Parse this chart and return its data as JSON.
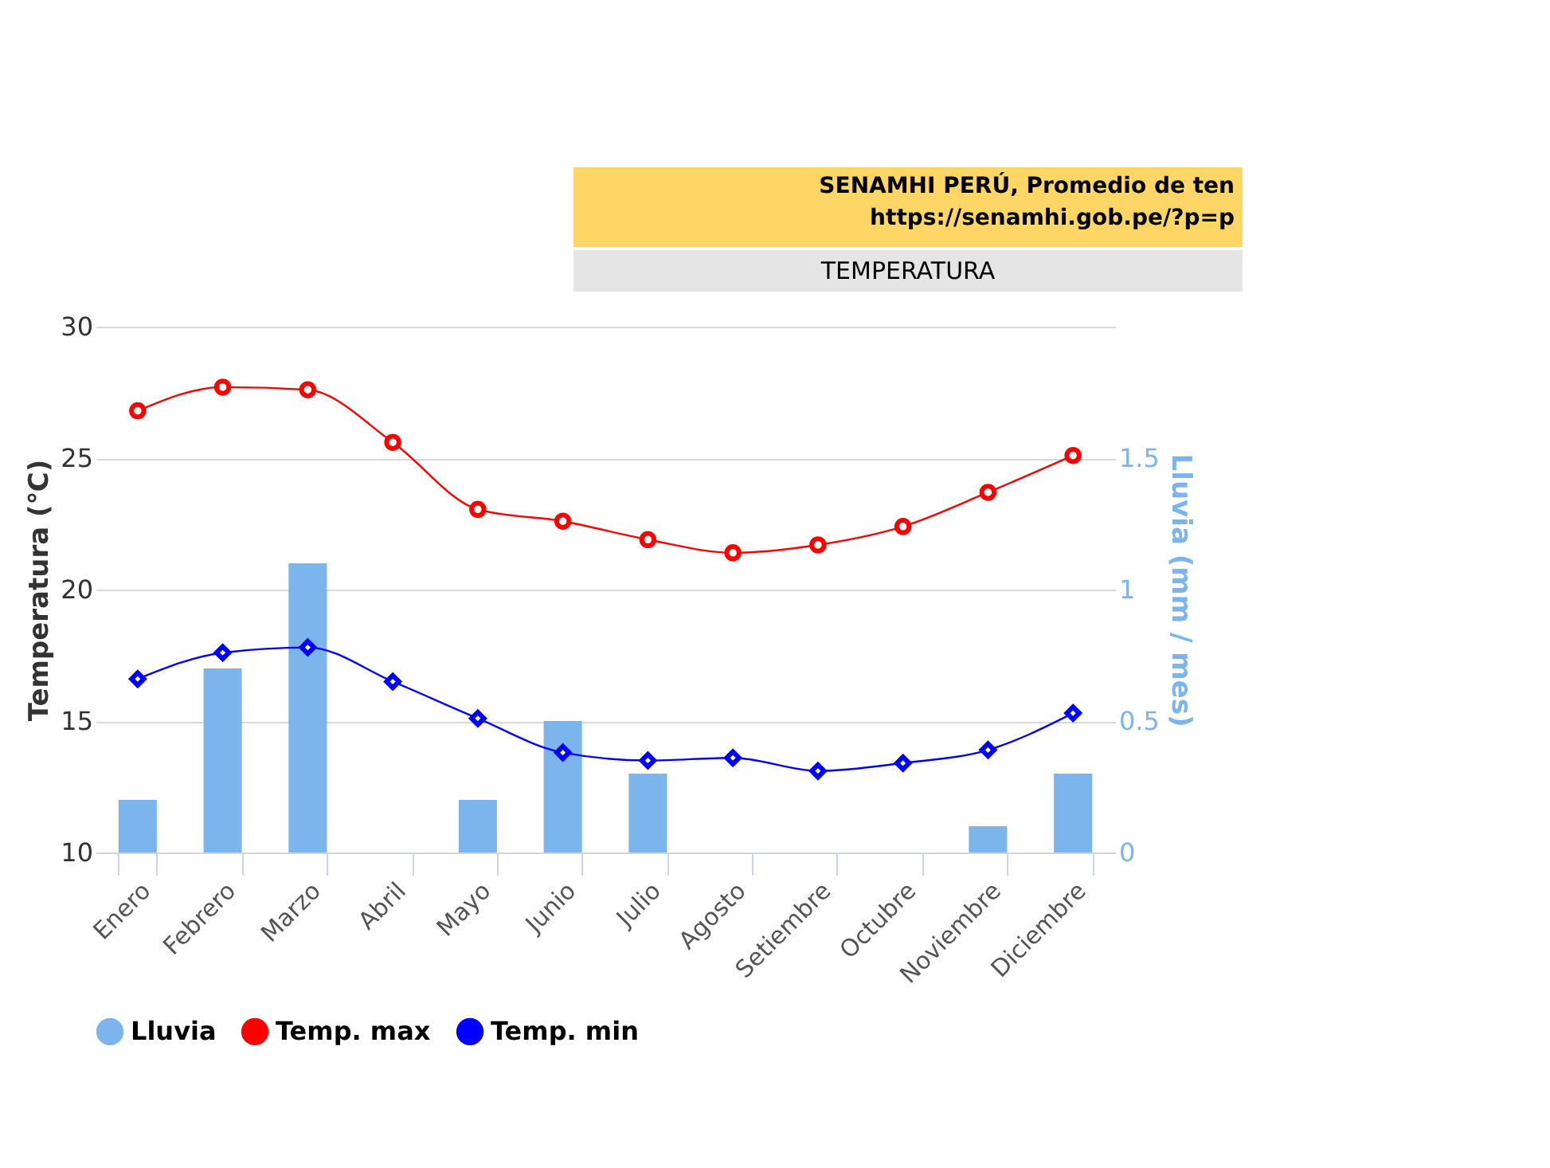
{
  "chart_data": {
    "type": "bar",
    "title": "TEMPERATURA",
    "annotations": [
      "SENAMHI PERÚ, Promedio de ten",
      "https://senamhi.gob.pe/?p=p"
    ],
    "categories": [
      "Enero",
      "Febrero",
      "Marzo",
      "Abril",
      "Mayo",
      "Junio",
      "Julio",
      "Agosto",
      "Setiembre",
      "Octubre",
      "Noviembre",
      "Diciembre"
    ],
    "series": [
      {
        "name": "Lluvia",
        "axis": "y2",
        "color": "#7cb5ec",
        "values": [
          0.2,
          0.7,
          1.1,
          0,
          0.2,
          0.5,
          0.3,
          0,
          0,
          0,
          0.1,
          0.3
        ]
      },
      {
        "name": "Temp. max",
        "type": "line",
        "color": "#ff0000",
        "marker": "circle",
        "values": [
          26.8,
          27.7,
          27.6,
          25.6,
          23.05,
          22.6,
          21.9,
          21.4,
          21.7,
          22.4,
          23.7,
          25.1
        ]
      },
      {
        "name": "Temp. min",
        "type": "line",
        "color": "#0000ff",
        "marker": "diamond",
        "values": [
          16.6,
          17.6,
          17.8,
          16.5,
          15.1,
          13.8,
          13.5,
          13.6,
          13.1,
          13.4,
          13.9,
          15.3
        ]
      }
    ],
    "ylabel": "Temperatura (℃)",
    "y2label": "Lluvia (mm / mes)",
    "ylim": [
      10,
      30
    ],
    "yticks": [
      10,
      15,
      20,
      25,
      30
    ],
    "y2lim": [
      0,
      2
    ],
    "y2ticks": [
      0,
      0.5,
      1,
      1.5
    ],
    "grid": "y",
    "legend": "bottom"
  }
}
